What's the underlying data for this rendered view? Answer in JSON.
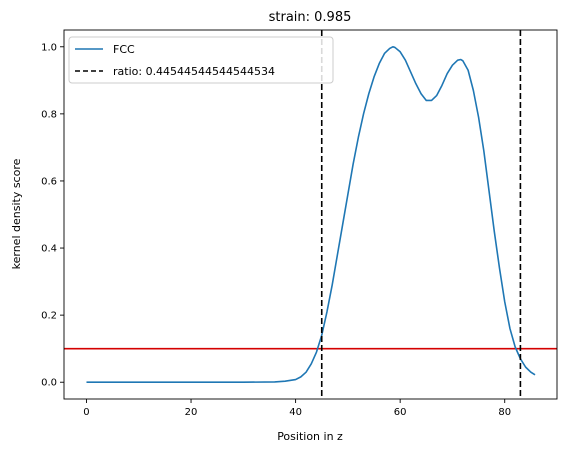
{
  "chart_data": {
    "type": "line",
    "title": "strain: 0.985",
    "xlabel": "Position in z",
    "ylabel": "kernel density score",
    "xlim": [
      -4.3,
      90
    ],
    "ylim": [
      -0.05,
      1.05
    ],
    "xticks": [
      0,
      20,
      40,
      60,
      80
    ],
    "yticks": [
      0.0,
      0.2,
      0.4,
      0.6,
      0.8,
      1.0
    ],
    "ytick_labels": [
      "0.0",
      "0.2",
      "0.4",
      "0.6",
      "0.8",
      "1.0"
    ],
    "grid": false,
    "legend": {
      "placement": "top-left",
      "entries": [
        {
          "label": "FCC",
          "style": "solid",
          "color": "#1f77b4"
        },
        {
          "label": "ratio: 0.44544544544544534",
          "style": "dashed",
          "color": "#000000"
        }
      ]
    },
    "series": [
      {
        "name": "FCC",
        "color": "#1f77b4",
        "x": [
          0,
          10,
          20,
          30,
          36,
          38,
          40,
          41,
          42,
          43,
          44,
          45,
          46,
          47,
          48,
          49,
          50,
          51,
          52,
          53,
          54,
          55,
          56,
          57,
          58,
          58.6,
          59,
          60,
          61,
          62,
          63,
          64,
          65,
          66,
          67,
          68,
          69,
          70,
          71,
          71.6,
          72,
          73,
          74,
          75,
          76,
          77,
          78,
          79,
          80,
          81,
          82,
          83,
          84,
          85,
          85.8
        ],
        "y": [
          0,
          0,
          0,
          0,
          0.001,
          0.003,
          0.008,
          0.016,
          0.03,
          0.055,
          0.09,
          0.14,
          0.21,
          0.29,
          0.38,
          0.47,
          0.56,
          0.65,
          0.73,
          0.8,
          0.86,
          0.91,
          0.95,
          0.98,
          0.995,
          1.0,
          0.998,
          0.985,
          0.96,
          0.925,
          0.89,
          0.86,
          0.84,
          0.84,
          0.855,
          0.885,
          0.92,
          0.945,
          0.96,
          0.962,
          0.958,
          0.93,
          0.87,
          0.79,
          0.69,
          0.57,
          0.45,
          0.34,
          0.24,
          0.16,
          0.105,
          0.07,
          0.045,
          0.03,
          0.022
        ]
      }
    ],
    "vlines": [
      {
        "x": 45,
        "color": "#000000",
        "style": "dashed"
      },
      {
        "x": 83,
        "color": "#000000",
        "style": "dashed"
      }
    ],
    "hlines": [
      {
        "y": 0.1,
        "color": "#d40000",
        "style": "solid"
      }
    ]
  }
}
